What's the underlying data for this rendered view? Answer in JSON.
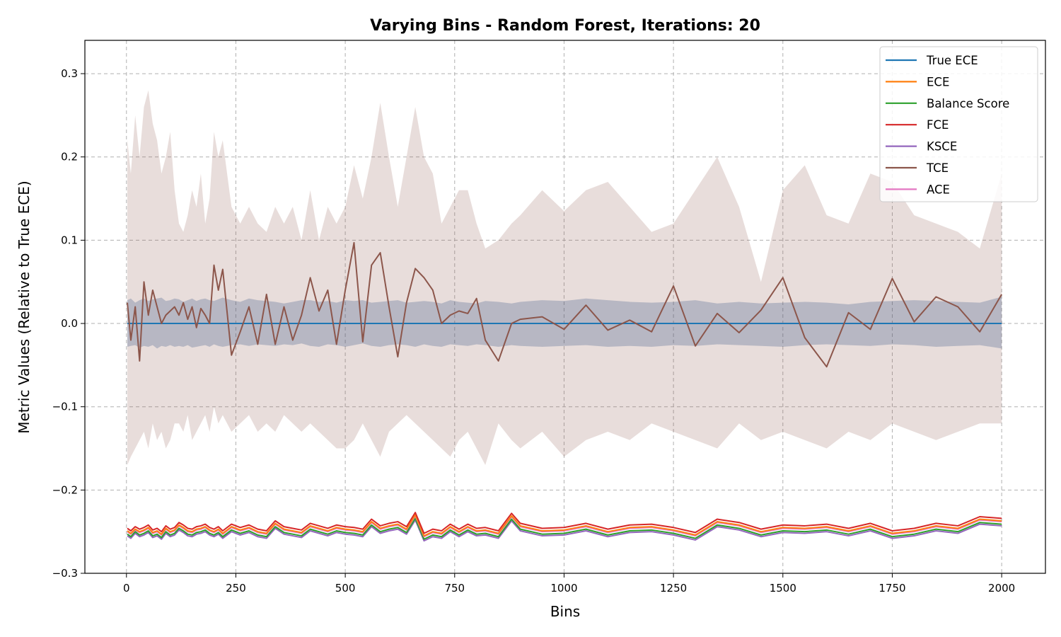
{
  "chart_data": {
    "type": "line",
    "title": "Varying Bins - Random Forest, Iterations: 20",
    "xlabel": "Bins",
    "ylabel": "Metric Values (Relative to True ECE)",
    "xlim": [
      -95,
      2100
    ],
    "ylim": [
      -0.3,
      0.34
    ],
    "xticks": [
      0,
      250,
      500,
      750,
      1000,
      1250,
      1500,
      1750,
      2000
    ],
    "yticks": [
      -0.3,
      -0.2,
      -0.1,
      0.0,
      0.1,
      0.2,
      0.3
    ],
    "ytick_labels": [
      "−0.3",
      "−0.2",
      "−0.1",
      "0.0",
      "0.1",
      "0.2",
      "0.3"
    ],
    "grid": true,
    "legend_position": "top-right",
    "x": [
      2,
      10,
      20,
      30,
      40,
      50,
      60,
      70,
      80,
      90,
      100,
      110,
      120,
      130,
      140,
      150,
      160,
      170,
      180,
      190,
      200,
      210,
      220,
      240,
      260,
      280,
      300,
      320,
      340,
      360,
      380,
      400,
      420,
      440,
      460,
      480,
      500,
      520,
      540,
      560,
      580,
      600,
      620,
      640,
      660,
      680,
      700,
      720,
      740,
      760,
      780,
      800,
      820,
      850,
      880,
      900,
      950,
      1000,
      1050,
      1100,
      1150,
      1200,
      1250,
      1300,
      1350,
      1400,
      1450,
      1500,
      1550,
      1600,
      1650,
      1700,
      1750,
      1800,
      1850,
      1900,
      1950,
      2000
    ],
    "series": [
      {
        "name": "True ECE",
        "color": "#1f77b4",
        "values": [
          0,
          0,
          0,
          0,
          0,
          0,
          0,
          0,
          0,
          0,
          0,
          0,
          0,
          0,
          0,
          0,
          0,
          0,
          0,
          0,
          0,
          0,
          0,
          0,
          0,
          0,
          0,
          0,
          0,
          0,
          0,
          0,
          0,
          0,
          0,
          0,
          0,
          0,
          0,
          0,
          0,
          0,
          0,
          0,
          0,
          0,
          0,
          0,
          0,
          0,
          0,
          0,
          0,
          0,
          0,
          0,
          0,
          0,
          0,
          0,
          0,
          0,
          0,
          0,
          0,
          0,
          0,
          0,
          0,
          0,
          0,
          0,
          0,
          0,
          0,
          0,
          0,
          0
        ],
        "band_upper": [
          0.028,
          0.03,
          0.025,
          0.028,
          0.03,
          0.027,
          0.029,
          0.03,
          0.031,
          0.027,
          0.028,
          0.03,
          0.029,
          0.026,
          0.028,
          0.03,
          0.027,
          0.029,
          0.03,
          0.028,
          0.027,
          0.029,
          0.031,
          0.028,
          0.026,
          0.03,
          0.028,
          0.027,
          0.026,
          0.024,
          0.026,
          0.028,
          0.028,
          0.026,
          0.027,
          0.025,
          0.028,
          0.027,
          0.028,
          0.025,
          0.026,
          0.027,
          0.028,
          0.025,
          0.026,
          0.027,
          0.026,
          0.024,
          0.028,
          0.026,
          0.025,
          0.024,
          0.027,
          0.026,
          0.024,
          0.026,
          0.028,
          0.027,
          0.03,
          0.028,
          0.026,
          0.025,
          0.026,
          0.028,
          0.024,
          0.026,
          0.024,
          0.025,
          0.026,
          0.025,
          0.023,
          0.026,
          0.027,
          0.028,
          0.027,
          0.026,
          0.025,
          0.032
        ],
        "band_lower": [
          -0.028,
          -0.027,
          -0.026,
          -0.029,
          -0.027,
          -0.028,
          -0.026,
          -0.03,
          -0.027,
          -0.028,
          -0.026,
          -0.028,
          -0.027,
          -0.028,
          -0.026,
          -0.029,
          -0.028,
          -0.027,
          -0.026,
          -0.028,
          -0.025,
          -0.027,
          -0.028,
          -0.026,
          -0.025,
          -0.027,
          -0.025,
          -0.026,
          -0.027,
          -0.025,
          -0.026,
          -0.024,
          -0.027,
          -0.028,
          -0.025,
          -0.026,
          -0.028,
          -0.026,
          -0.024,
          -0.027,
          -0.028,
          -0.026,
          -0.025,
          -0.026,
          -0.028,
          -0.025,
          -0.027,
          -0.028,
          -0.025,
          -0.026,
          -0.027,
          -0.025,
          -0.026,
          -0.028,
          -0.026,
          -0.027,
          -0.028,
          -0.027,
          -0.026,
          -0.028,
          -0.027,
          -0.028,
          -0.026,
          -0.027,
          -0.025,
          -0.026,
          -0.027,
          -0.028,
          -0.026,
          -0.025,
          -0.026,
          -0.027,
          -0.025,
          -0.026,
          -0.028,
          -0.027,
          -0.026,
          -0.03
        ]
      },
      {
        "name": "ECE",
        "color": "#ff7f0e",
        "values": [
          -0.249,
          -0.252,
          -0.247,
          -0.25,
          -0.248,
          -0.245,
          -0.251,
          -0.249,
          -0.253,
          -0.246,
          -0.25,
          -0.248,
          -0.242,
          -0.245,
          -0.249,
          -0.25,
          -0.247,
          -0.246,
          -0.244,
          -0.248,
          -0.25,
          -0.247,
          -0.252,
          -0.244,
          -0.248,
          -0.245,
          -0.25,
          -0.252,
          -0.24,
          -0.247,
          -0.249,
          -0.251,
          -0.243,
          -0.246,
          -0.249,
          -0.245,
          -0.247,
          -0.248,
          -0.25,
          -0.238,
          -0.246,
          -0.243,
          -0.241,
          -0.247,
          -0.23,
          -0.255,
          -0.25,
          -0.252,
          -0.244,
          -0.25,
          -0.244,
          -0.249,
          -0.248,
          -0.252,
          -0.231,
          -0.243,
          -0.249,
          -0.248,
          -0.243,
          -0.25,
          -0.245,
          -0.244,
          -0.248,
          -0.254,
          -0.238,
          -0.242,
          -0.25,
          -0.245,
          -0.246,
          -0.244,
          -0.249,
          -0.243,
          -0.252,
          -0.249,
          -0.243,
          -0.246,
          -0.235,
          -0.237
        ]
      },
      {
        "name": "Balance Score",
        "color": "#2ca02c",
        "values": [
          -0.253,
          -0.256,
          -0.25,
          -0.254,
          -0.252,
          -0.249,
          -0.255,
          -0.253,
          -0.257,
          -0.25,
          -0.254,
          -0.252,
          -0.246,
          -0.249,
          -0.253,
          -0.254,
          -0.251,
          -0.25,
          -0.248,
          -0.252,
          -0.254,
          -0.251,
          -0.256,
          -0.248,
          -0.252,
          -0.249,
          -0.254,
          -0.256,
          -0.244,
          -0.251,
          -0.253,
          -0.255,
          -0.247,
          -0.25,
          -0.253,
          -0.249,
          -0.251,
          -0.252,
          -0.254,
          -0.242,
          -0.25,
          -0.247,
          -0.245,
          -0.251,
          -0.234,
          -0.259,
          -0.254,
          -0.256,
          -0.248,
          -0.254,
          -0.248,
          -0.253,
          -0.252,
          -0.256,
          -0.235,
          -0.247,
          -0.253,
          -0.252,
          -0.247,
          -0.254,
          -0.249,
          -0.248,
          -0.252,
          -0.258,
          -0.242,
          -0.246,
          -0.254,
          -0.249,
          -0.25,
          -0.248,
          -0.253,
          -0.247,
          -0.256,
          -0.253,
          -0.247,
          -0.25,
          -0.239,
          -0.241
        ]
      },
      {
        "name": "FCE",
        "color": "#d62728",
        "values": [
          -0.246,
          -0.249,
          -0.244,
          -0.247,
          -0.245,
          -0.242,
          -0.248,
          -0.246,
          -0.25,
          -0.243,
          -0.247,
          -0.245,
          -0.239,
          -0.242,
          -0.246,
          -0.247,
          -0.244,
          -0.243,
          -0.241,
          -0.245,
          -0.247,
          -0.244,
          -0.249,
          -0.241,
          -0.245,
          -0.242,
          -0.247,
          -0.249,
          -0.237,
          -0.244,
          -0.246,
          -0.248,
          -0.24,
          -0.243,
          -0.246,
          -0.242,
          -0.244,
          -0.245,
          -0.247,
          -0.235,
          -0.243,
          -0.24,
          -0.238,
          -0.244,
          -0.227,
          -0.252,
          -0.247,
          -0.249,
          -0.241,
          -0.247,
          -0.241,
          -0.246,
          -0.245,
          -0.249,
          -0.228,
          -0.24,
          -0.246,
          -0.245,
          -0.24,
          -0.247,
          -0.242,
          -0.241,
          -0.245,
          -0.251,
          -0.235,
          -0.239,
          -0.247,
          -0.242,
          -0.243,
          -0.241,
          -0.246,
          -0.24,
          -0.249,
          -0.246,
          -0.24,
          -0.243,
          -0.232,
          -0.234
        ]
      },
      {
        "name": "KSCE",
        "color": "#9467bd",
        "values": [
          -0.255,
          -0.258,
          -0.252,
          -0.256,
          -0.254,
          -0.251,
          -0.257,
          -0.255,
          -0.259,
          -0.252,
          -0.256,
          -0.254,
          -0.248,
          -0.251,
          -0.255,
          -0.256,
          -0.253,
          -0.252,
          -0.25,
          -0.254,
          -0.256,
          -0.253,
          -0.258,
          -0.25,
          -0.254,
          -0.251,
          -0.256,
          -0.258,
          -0.246,
          -0.253,
          -0.255,
          -0.257,
          -0.249,
          -0.252,
          -0.255,
          -0.251,
          -0.253,
          -0.254,
          -0.256,
          -0.244,
          -0.252,
          -0.249,
          -0.247,
          -0.253,
          -0.236,
          -0.261,
          -0.256,
          -0.258,
          -0.25,
          -0.256,
          -0.25,
          -0.255,
          -0.254,
          -0.258,
          -0.237,
          -0.249,
          -0.255,
          -0.254,
          -0.249,
          -0.256,
          -0.251,
          -0.25,
          -0.254,
          -0.26,
          -0.244,
          -0.248,
          -0.256,
          -0.251,
          -0.252,
          -0.25,
          -0.255,
          -0.249,
          -0.258,
          -0.255,
          -0.249,
          -0.252,
          -0.241,
          -0.243
        ]
      },
      {
        "name": "TCE",
        "color": "#8c564b",
        "values": [
          0.025,
          -0.02,
          0.02,
          -0.045,
          0.05,
          0.01,
          0.04,
          0.02,
          0.0,
          0.01,
          0.015,
          0.02,
          0.01,
          0.025,
          0.005,
          0.02,
          -0.005,
          0.018,
          0.01,
          0.0,
          0.07,
          0.04,
          0.065,
          -0.038,
          -0.01,
          0.02,
          -0.025,
          0.035,
          -0.025,
          0.02,
          -0.02,
          0.01,
          0.055,
          0.015,
          0.04,
          -0.025,
          0.04,
          0.097,
          -0.022,
          0.07,
          0.085,
          0.02,
          -0.04,
          0.025,
          0.066,
          0.055,
          0.04,
          0.0,
          0.01,
          0.015,
          0.012,
          0.03,
          -0.02,
          -0.045,
          0.0,
          0.005,
          0.008,
          -0.007,
          0.022,
          -0.008,
          0.004,
          -0.01,
          0.045,
          -0.027,
          0.012,
          -0.011,
          0.016,
          0.055,
          -0.017,
          -0.052,
          0.013,
          -0.007,
          0.054,
          0.002,
          0.032,
          0.02,
          -0.01,
          0.035
        ],
        "band_upper": [
          0.22,
          0.18,
          0.25,
          0.2,
          0.26,
          0.28,
          0.24,
          0.22,
          0.18,
          0.2,
          0.23,
          0.16,
          0.12,
          0.11,
          0.13,
          0.16,
          0.14,
          0.18,
          0.12,
          0.15,
          0.23,
          0.2,
          0.22,
          0.14,
          0.12,
          0.14,
          0.12,
          0.11,
          0.14,
          0.12,
          0.14,
          0.1,
          0.16,
          0.1,
          0.14,
          0.12,
          0.14,
          0.19,
          0.15,
          0.2,
          0.265,
          0.2,
          0.14,
          0.2,
          0.26,
          0.2,
          0.18,
          0.12,
          0.14,
          0.16,
          0.16,
          0.12,
          0.09,
          0.1,
          0.12,
          0.13,
          0.16,
          0.135,
          0.16,
          0.17,
          0.14,
          0.11,
          0.12,
          0.16,
          0.2,
          0.14,
          0.05,
          0.16,
          0.19,
          0.13,
          0.12,
          0.18,
          0.17,
          0.13,
          0.12,
          0.11,
          0.09,
          0.18
        ],
        "band_lower": [
          -0.17,
          -0.16,
          -0.15,
          -0.14,
          -0.13,
          -0.15,
          -0.12,
          -0.14,
          -0.13,
          -0.15,
          -0.14,
          -0.12,
          -0.12,
          -0.13,
          -0.11,
          -0.14,
          -0.13,
          -0.12,
          -0.11,
          -0.13,
          -0.1,
          -0.12,
          -0.11,
          -0.13,
          -0.12,
          -0.11,
          -0.13,
          -0.12,
          -0.13,
          -0.11,
          -0.12,
          -0.13,
          -0.12,
          -0.13,
          -0.14,
          -0.15,
          -0.15,
          -0.14,
          -0.12,
          -0.14,
          -0.16,
          -0.13,
          -0.12,
          -0.11,
          -0.12,
          -0.13,
          -0.14,
          -0.15,
          -0.16,
          -0.14,
          -0.13,
          -0.15,
          -0.17,
          -0.12,
          -0.14,
          -0.15,
          -0.13,
          -0.16,
          -0.14,
          -0.13,
          -0.14,
          -0.12,
          -0.13,
          -0.14,
          -0.15,
          -0.12,
          -0.14,
          -0.13,
          -0.14,
          -0.15,
          -0.13,
          -0.14,
          -0.12,
          -0.13,
          -0.14,
          -0.13,
          -0.12,
          -0.12
        ]
      },
      {
        "name": "ACE",
        "color": "#e377c2",
        "values": [
          -0.25,
          -0.253,
          -0.248,
          -0.251,
          -0.249,
          -0.246,
          -0.252,
          -0.25,
          -0.254,
          -0.247,
          -0.251,
          -0.249,
          -0.243,
          -0.246,
          -0.25,
          -0.251,
          -0.248,
          -0.247,
          -0.245,
          -0.249,
          -0.251,
          -0.248,
          -0.253,
          -0.245,
          -0.249,
          -0.246,
          -0.251,
          -0.253,
          -0.241,
          -0.248,
          -0.25,
          -0.252,
          -0.244,
          -0.247,
          -0.25,
          -0.246,
          -0.248,
          -0.249,
          -0.251,
          -0.239,
          -0.247,
          -0.244,
          -0.242,
          -0.248,
          -0.231,
          -0.256,
          -0.251,
          -0.253,
          -0.245,
          -0.251,
          -0.245,
          -0.25,
          -0.249,
          -0.253,
          -0.232,
          -0.244,
          -0.25,
          -0.249,
          -0.244,
          -0.251,
          -0.246,
          -0.245,
          -0.249,
          -0.255,
          -0.239,
          -0.243,
          -0.251,
          -0.246,
          -0.247,
          -0.245,
          -0.25,
          -0.244,
          -0.253,
          -0.25,
          -0.244,
          -0.247,
          -0.236,
          -0.238
        ]
      }
    ]
  }
}
